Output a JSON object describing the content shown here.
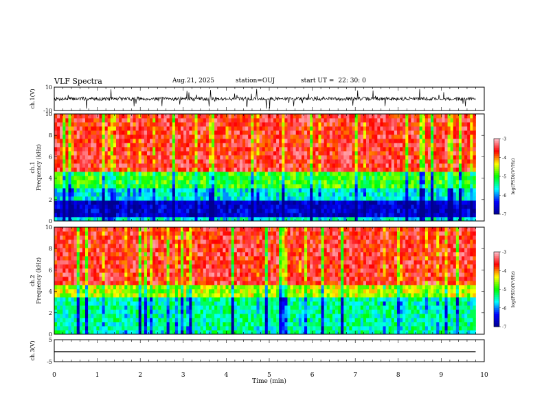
{
  "header": {
    "title": "VLF Spectra",
    "date": "Aug.21, 2025",
    "station": "station=OUJ",
    "start_label": "start  UT =",
    "start_time": "22: 30: 0"
  },
  "chart_data": [
    {
      "type": "line",
      "panel": "ch1-waveform",
      "ylabel": "ch.1(V)",
      "ylim": [
        -10,
        10
      ],
      "yticks": [
        "10",
        "-10"
      ],
      "xlim": [
        0,
        10
      ],
      "series": [
        {
          "color": "#000000",
          "description_value_baseline": 0
        }
      ]
    },
    {
      "type": "heatmap",
      "panel": "ch1-spectrogram",
      "ylabel": "ch.1\nFrequency (kHz)",
      "ylabel_lines": [
        "ch.1",
        "Frequency (kHz)"
      ],
      "ylim": [
        0,
        10
      ],
      "yticks": [
        "0",
        "2",
        "4",
        "6",
        "8",
        "10"
      ],
      "xlim": [
        0,
        10
      ],
      "data_end_min": 9.8,
      "colorbar": {
        "label": "log(PSD)(V²/Hz)",
        "range": [
          -7,
          -3
        ],
        "ticks": [
          "-3",
          "-4",
          "-5",
          "-6",
          "-7"
        ],
        "colors": [
          "#00008f",
          "#0000ff",
          "#00ffff",
          "#00ff00",
          "#ffff00",
          "#ff0000",
          "#ffc0cb"
        ]
      }
    },
    {
      "type": "heatmap",
      "panel": "ch2-spectrogram",
      "ylabel": "ch.2\nFrequency (kHz)",
      "ylabel_lines": [
        "ch.2",
        "Frequency (kHz)"
      ],
      "ylim": [
        0,
        10
      ],
      "yticks": [
        "0",
        "2",
        "4",
        "6",
        "8",
        "10"
      ],
      "xlim": [
        0,
        10
      ],
      "data_end_min": 9.8,
      "colorbar": {
        "label": "log(PSD)(V²/Hz)",
        "range": [
          -7,
          -3
        ],
        "ticks": [
          "-3",
          "-4",
          "-5",
          "-6",
          "-7"
        ],
        "colors": [
          "#00008f",
          "#0000ff",
          "#00ffff",
          "#00ff00",
          "#ffff00",
          "#ff0000",
          "#ffc0cb"
        ]
      }
    },
    {
      "type": "line",
      "panel": "ch3-waveform",
      "ylabel": "ch.3(V)",
      "ylim": [
        -5,
        5
      ],
      "yticks": [
        "5",
        "-5"
      ],
      "xlim": [
        0,
        10
      ],
      "series": [
        {
          "color": "#000000",
          "constant_value": -0.5
        }
      ]
    }
  ],
  "xaxis": {
    "label": "Time (min)",
    "ticks": [
      "0",
      "1",
      "2",
      "3",
      "4",
      "5",
      "6",
      "7",
      "8",
      "9",
      "10"
    ]
  }
}
